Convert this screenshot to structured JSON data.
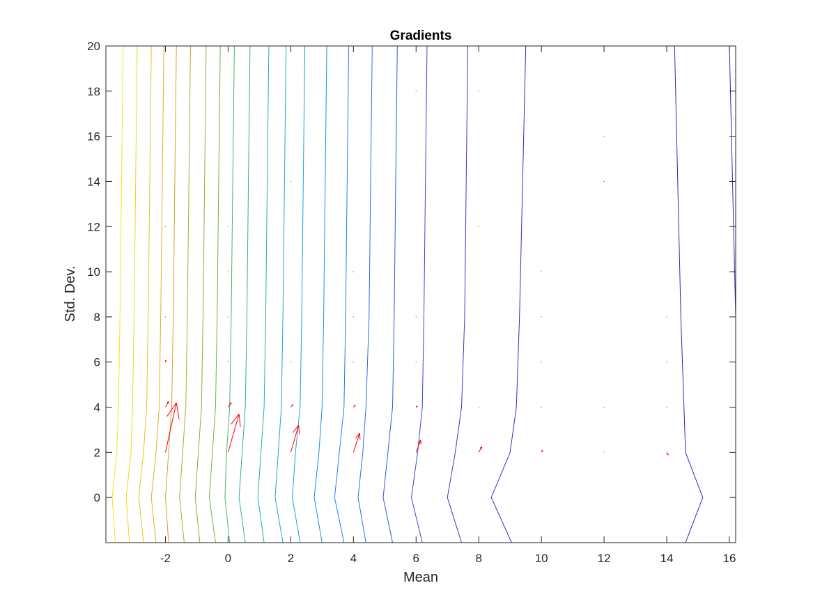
{
  "chart_data": {
    "type": "contour",
    "title": "Gradients",
    "xlabel": "Mean",
    "ylabel": "Std. Dev.",
    "xlim": [
      -3.9,
      16.2
    ],
    "ylim": [
      -2,
      20
    ],
    "xticks": [
      -2,
      0,
      2,
      4,
      6,
      8,
      10,
      12,
      14,
      16
    ],
    "yticks": [
      0,
      2,
      4,
      6,
      8,
      10,
      12,
      14,
      16,
      18,
      20
    ],
    "xtick_labels": [
      "-2",
      "0",
      "2",
      "4",
      "6",
      "8",
      "10",
      "12",
      "14",
      "16"
    ],
    "ytick_labels": [
      "0",
      "2",
      "4",
      "6",
      "8",
      "10",
      "12",
      "14",
      "16",
      "18",
      "20"
    ],
    "grid": false,
    "box": true,
    "contours": [
      {
        "color": "#f5e51c",
        "points": [
          [
            -3.6,
            -2
          ],
          [
            -3.7,
            0
          ],
          [
            -3.55,
            2
          ],
          [
            -3.5,
            4
          ],
          [
            -3.45,
            8
          ],
          [
            -3.4,
            14
          ],
          [
            -3.35,
            20
          ]
        ]
      },
      {
        "color": "#e6d922",
        "points": [
          [
            -3.15,
            -2
          ],
          [
            -3.25,
            0
          ],
          [
            -3.1,
            2
          ],
          [
            -3.05,
            4
          ],
          [
            -3.0,
            8
          ],
          [
            -2.95,
            14
          ],
          [
            -2.9,
            20
          ]
        ]
      },
      {
        "color": "#dcc62a",
        "points": [
          [
            -2.7,
            -2
          ],
          [
            -2.85,
            0
          ],
          [
            -2.7,
            2
          ],
          [
            -2.6,
            4
          ],
          [
            -2.55,
            8
          ],
          [
            -2.5,
            14
          ],
          [
            -2.45,
            20
          ]
        ]
      },
      {
        "color": "#d8b428",
        "points": [
          [
            -2.3,
            -2
          ],
          [
            -2.45,
            0
          ],
          [
            -2.3,
            2
          ],
          [
            -2.2,
            4
          ],
          [
            -2.15,
            8
          ],
          [
            -2.1,
            14
          ],
          [
            -2.05,
            20
          ]
        ]
      },
      {
        "color": "#cca52b",
        "points": [
          [
            -1.9,
            -2
          ],
          [
            -2.0,
            0
          ],
          [
            -1.9,
            2
          ],
          [
            -1.8,
            4
          ],
          [
            -1.75,
            8
          ],
          [
            -1.7,
            14
          ],
          [
            -1.65,
            20
          ]
        ]
      },
      {
        "color": "#b2a92c",
        "points": [
          [
            -1.4,
            -2
          ],
          [
            -1.55,
            0
          ],
          [
            -1.45,
            2
          ],
          [
            -1.35,
            4
          ],
          [
            -1.3,
            8
          ],
          [
            -1.25,
            14
          ],
          [
            -1.2,
            20
          ]
        ]
      },
      {
        "color": "#92ad30",
        "points": [
          [
            -0.9,
            -2
          ],
          [
            -1.05,
            0
          ],
          [
            -0.95,
            2
          ],
          [
            -0.85,
            4
          ],
          [
            -0.8,
            8
          ],
          [
            -0.75,
            14
          ],
          [
            -0.7,
            20
          ]
        ]
      },
      {
        "color": "#6db23c",
        "points": [
          [
            -0.4,
            -2
          ],
          [
            -0.6,
            0
          ],
          [
            -0.5,
            2
          ],
          [
            -0.4,
            4
          ],
          [
            -0.35,
            8
          ],
          [
            -0.3,
            14
          ],
          [
            -0.25,
            20
          ]
        ]
      },
      {
        "color": "#44b566",
        "points": [
          [
            0.05,
            -2
          ],
          [
            -0.1,
            0
          ],
          [
            -0.05,
            2
          ],
          [
            0.05,
            4
          ],
          [
            0.1,
            8
          ],
          [
            0.15,
            14
          ],
          [
            0.2,
            20
          ]
        ]
      },
      {
        "color": "#2db38d",
        "points": [
          [
            0.55,
            -2
          ],
          [
            0.35,
            0
          ],
          [
            0.45,
            2
          ],
          [
            0.55,
            4
          ],
          [
            0.6,
            8
          ],
          [
            0.65,
            14
          ],
          [
            0.7,
            20
          ]
        ]
      },
      {
        "color": "#23aeae",
        "points": [
          [
            1.15,
            -2
          ],
          [
            0.95,
            0
          ],
          [
            1.05,
            2
          ],
          [
            1.15,
            4
          ],
          [
            1.2,
            8
          ],
          [
            1.25,
            14
          ],
          [
            1.3,
            20
          ]
        ]
      },
      {
        "color": "#1ea8c8",
        "points": [
          [
            1.75,
            -2
          ],
          [
            1.5,
            0
          ],
          [
            1.6,
            2
          ],
          [
            1.7,
            4
          ],
          [
            1.75,
            8
          ],
          [
            1.8,
            14
          ],
          [
            1.85,
            20
          ]
        ]
      },
      {
        "color": "#16a0dc",
        "points": [
          [
            2.3,
            -2
          ],
          [
            2.05,
            0
          ],
          [
            2.15,
            2
          ],
          [
            2.3,
            4
          ],
          [
            2.35,
            8
          ],
          [
            2.4,
            14
          ],
          [
            2.45,
            20
          ]
        ]
      },
      {
        "color": "#1490e8",
        "points": [
          [
            3.0,
            -2
          ],
          [
            2.75,
            0
          ],
          [
            2.9,
            2
          ],
          [
            3.0,
            4
          ],
          [
            3.05,
            8
          ],
          [
            3.1,
            14
          ],
          [
            3.15,
            20
          ]
        ]
      },
      {
        "color": "#1c80ec",
        "points": [
          [
            3.7,
            -2
          ],
          [
            3.4,
            0
          ],
          [
            3.55,
            2
          ],
          [
            3.7,
            4
          ],
          [
            3.75,
            8
          ],
          [
            3.8,
            14
          ],
          [
            3.85,
            20
          ]
        ]
      },
      {
        "color": "#2a6ce8",
        "points": [
          [
            4.4,
            -2
          ],
          [
            4.15,
            0
          ],
          [
            4.3,
            2
          ],
          [
            4.4,
            4
          ],
          [
            4.5,
            8
          ],
          [
            4.55,
            14
          ],
          [
            4.6,
            20
          ]
        ]
      },
      {
        "color": "#3256dc",
        "points": [
          [
            5.25,
            -2
          ],
          [
            4.95,
            0
          ],
          [
            5.1,
            2
          ],
          [
            5.25,
            4
          ],
          [
            5.3,
            8
          ],
          [
            5.35,
            14
          ],
          [
            5.4,
            20
          ]
        ]
      },
      {
        "color": "#3744d0",
        "points": [
          [
            6.2,
            -2
          ],
          [
            5.85,
            0
          ],
          [
            6.05,
            2
          ],
          [
            6.2,
            4
          ],
          [
            6.25,
            8
          ],
          [
            6.3,
            14
          ],
          [
            6.35,
            20
          ]
        ]
      },
      {
        "color": "#3a34c4",
        "points": [
          [
            7.45,
            -2
          ],
          [
            7.0,
            0
          ],
          [
            7.25,
            2
          ],
          [
            7.45,
            4
          ],
          [
            7.55,
            8
          ],
          [
            7.6,
            14
          ],
          [
            7.65,
            20
          ]
        ]
      },
      {
        "color": "#3c28bc",
        "points": [
          [
            9.05,
            -2
          ],
          [
            8.4,
            0
          ],
          [
            9.0,
            2
          ],
          [
            9.2,
            4
          ],
          [
            9.3,
            8
          ],
          [
            9.4,
            14
          ],
          [
            9.5,
            20
          ]
        ]
      },
      {
        "color": "#3c22b6",
        "points": [
          [
            14.6,
            -2
          ],
          [
            15.15,
            0
          ],
          [
            14.6,
            2
          ],
          [
            14.55,
            4
          ],
          [
            14.45,
            8
          ],
          [
            14.35,
            14
          ],
          [
            14.25,
            20
          ]
        ]
      },
      {
        "color": "#3c1eb0",
        "points": [
          [
            16.2,
            8.0
          ],
          [
            16.1,
            14
          ],
          [
            16.0,
            20
          ]
        ]
      }
    ],
    "arrows": [
      {
        "x": -2,
        "y": 2,
        "u": 0.35,
        "v": 2.2
      },
      {
        "x": -2,
        "y": 4,
        "u": 0.1,
        "v": 0.25
      },
      {
        "x": -2,
        "y": 6,
        "u": 0.02,
        "v": 0.08
      },
      {
        "x": 0,
        "y": 2,
        "u": 0.35,
        "v": 1.7
      },
      {
        "x": 0,
        "y": 4,
        "u": 0.1,
        "v": 0.2
      },
      {
        "x": 0,
        "y": 6,
        "u": 0.02,
        "v": 0.05
      },
      {
        "x": 2,
        "y": 2,
        "u": 0.25,
        "v": 1.2
      },
      {
        "x": 2,
        "y": 4,
        "u": 0.07,
        "v": 0.12
      },
      {
        "x": 4,
        "y": 2,
        "u": 0.2,
        "v": 0.85
      },
      {
        "x": 4,
        "y": 4,
        "u": 0.06,
        "v": 0.1
      },
      {
        "x": 6,
        "y": 2,
        "u": 0.15,
        "v": 0.55
      },
      {
        "x": 6,
        "y": 4,
        "u": 0.04,
        "v": 0.05
      },
      {
        "x": 8,
        "y": 2,
        "u": 0.1,
        "v": 0.25
      },
      {
        "x": 10,
        "y": 2,
        "u": 0.04,
        "v": 0.1
      },
      {
        "x": 14,
        "y": 2,
        "u": 0.05,
        "v": -0.12
      },
      {
        "x": 12,
        "y": 2,
        "u": 0.01,
        "v": 0.02
      }
    ],
    "dots": [
      [
        -2,
        8
      ],
      [
        -2,
        12
      ],
      [
        0,
        8
      ],
      [
        0,
        10
      ],
      [
        0,
        12
      ],
      [
        2,
        6
      ],
      [
        2,
        14
      ],
      [
        4,
        6
      ],
      [
        4,
        8
      ],
      [
        4,
        10
      ],
      [
        6,
        6
      ],
      [
        6,
        8
      ],
      [
        6,
        18
      ],
      [
        8,
        4
      ],
      [
        8,
        12
      ],
      [
        8,
        18
      ],
      [
        10,
        4
      ],
      [
        10,
        6
      ],
      [
        10,
        8
      ],
      [
        10,
        10
      ],
      [
        12,
        4
      ],
      [
        12,
        14
      ],
      [
        12,
        16
      ],
      [
        14,
        4
      ],
      [
        14,
        6
      ],
      [
        14,
        8
      ]
    ],
    "arrow_color": "#ff0000"
  }
}
